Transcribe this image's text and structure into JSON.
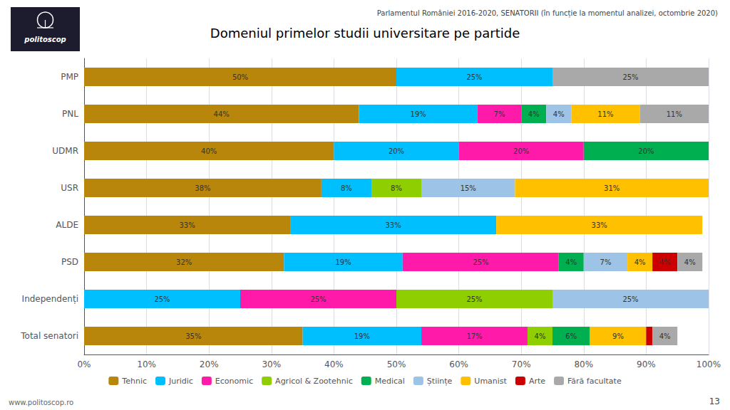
{
  "chart_data": {
    "type": "bar",
    "orientation": "horizontal",
    "stacked": true,
    "title": "Domeniul primelor studii universitare pe partide",
    "subtitle": "Parlamentul României 2016-2020, SENATORII (în funcție la momentul analizei, octombrie 2020)",
    "annotations": [
      "www.politoscop.ro",
      "13",
      "politoscop"
    ],
    "categories": [
      "PMP",
      "PNL",
      "UDMR",
      "USR",
      "ALDE",
      "PSD",
      "Independenți",
      "Total senatori"
    ],
    "series": [
      {
        "name": "Tehnic",
        "color": "#b8860b",
        "values": [
          50,
          44,
          40,
          38,
          33,
          32,
          0,
          35
        ],
        "value_labels": [
          "50%",
          "44%",
          "40%",
          "38%",
          "33%",
          "32%",
          null,
          "35%"
        ]
      },
      {
        "name": "Juridic",
        "color": "#00bfff",
        "values": [
          25,
          19,
          20,
          8,
          33,
          19,
          25,
          19
        ],
        "value_labels": [
          "25%",
          "19%",
          "20%",
          "8%",
          "33%",
          "19%",
          "25%",
          "19%"
        ]
      },
      {
        "name": "Economic",
        "color": "#ff1aaa",
        "values": [
          0,
          7,
          20,
          0,
          0,
          25,
          25,
          17
        ],
        "value_labels": [
          null,
          "7%",
          "20%",
          null,
          null,
          "25%",
          "25%",
          "17%"
        ]
      },
      {
        "name": "Agricol & Zootehnic",
        "color": "#8fce00",
        "values": [
          0,
          0,
          0,
          8,
          0,
          0,
          25,
          4
        ],
        "value_labels": [
          null,
          null,
          null,
          "8%",
          null,
          null,
          "25%",
          "4%"
        ]
      },
      {
        "name": "Medical",
        "color": "#00b050",
        "values": [
          0,
          4,
          20,
          0,
          0,
          4,
          0,
          6
        ],
        "value_labels": [
          null,
          "4%",
          "20%",
          null,
          null,
          "4%",
          null,
          "6%"
        ]
      },
      {
        "name": "Științe",
        "color": "#9dc3e6",
        "values": [
          0,
          4,
          0,
          15,
          0,
          7,
          25,
          0
        ],
        "value_labels": [
          null,
          "4%",
          null,
          "15%",
          null,
          "7%",
          "25%",
          null
        ]
      },
      {
        "name": "Umanist",
        "color": "#ffc000",
        "values": [
          0,
          11,
          0,
          31,
          33,
          4,
          0,
          9
        ],
        "value_labels": [
          null,
          "11%",
          null,
          "31%",
          "33%",
          "4%",
          null,
          "9%"
        ]
      },
      {
        "name": "Arte",
        "color": "#cc0000",
        "values": [
          0,
          0,
          0,
          0,
          0,
          4,
          0,
          1
        ],
        "value_labels": [
          null,
          null,
          null,
          null,
          null,
          "4%",
          null,
          null
        ]
      },
      {
        "name": "Fără facultate",
        "color": "#a9a9a9",
        "values": [
          25,
          11,
          0,
          0,
          0,
          4,
          0,
          4
        ],
        "value_labels": [
          "25%",
          "11%",
          null,
          null,
          null,
          "4%",
          null,
          "4%"
        ]
      }
    ],
    "xlim": [
      0,
      100
    ],
    "xticks": [
      {
        "value": 0,
        "label": "0%"
      },
      {
        "value": 10,
        "label": "10%"
      },
      {
        "value": 20,
        "label": "20%"
      },
      {
        "value": 30,
        "label": "30%"
      },
      {
        "value": 40,
        "label": "40%"
      },
      {
        "value": 50,
        "label": "50%"
      },
      {
        "value": 60,
        "label": "60%"
      },
      {
        "value": 70,
        "label": "70%"
      },
      {
        "value": 80,
        "label": "80%"
      },
      {
        "value": 90,
        "label": "90%"
      },
      {
        "value": 100,
        "label": "100%"
      }
    ],
    "grid": true,
    "legend": "bottom",
    "data_labels": true
  }
}
